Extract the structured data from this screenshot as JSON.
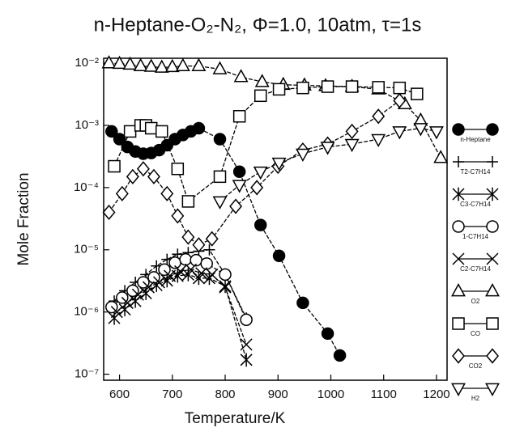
{
  "chart_data": {
    "type": "line",
    "title": "n-Heptane-O₂-N₂, Φ=1.0, 10atm, τ=1s",
    "x_label": "Temperature/K",
    "y_label": "Mole Fraction",
    "xlim": [
      570,
      1220
    ],
    "xticks": [
      600,
      700,
      800,
      900,
      1000,
      1100,
      1200
    ],
    "yscale": "log",
    "ylim": [
      8e-08,
      0.012
    ],
    "yticks": [
      {
        "value": 1e-07,
        "label": "10⁻⁷"
      },
      {
        "value": 1e-06,
        "label": "10⁻⁶"
      },
      {
        "value": 1e-05,
        "label": "10⁻⁵"
      },
      {
        "value": 0.0001,
        "label": "10⁻⁴"
      },
      {
        "value": 0.001,
        "label": "10⁻³"
      },
      {
        "value": 0.01,
        "label": "10⁻²"
      }
    ],
    "series": [
      {
        "name": "n-Heptane",
        "marker": "filled-circle",
        "color": "#000000",
        "x": [
          585,
          600,
          615,
          630,
          645,
          660,
          675,
          690,
          705,
          720,
          735,
          750,
          790,
          827,
          867,
          902,
          947,
          994,
          1017
        ],
        "values": [
          0.0008,
          0.0006,
          0.00045,
          0.00038,
          0.00035,
          0.00036,
          0.0004,
          0.00048,
          0.0006,
          0.0007,
          0.0008,
          0.0009,
          0.0006,
          0.00018,
          2.5e-05,
          8e-06,
          1.4e-06,
          4.5e-07,
          2e-07
        ]
      },
      {
        "name": "T2-C7H14",
        "marker": "plus",
        "color": "#000000",
        "x": [
          590,
          610,
          630,
          650,
          670,
          690,
          710,
          730,
          750,
          770,
          800,
          840
        ],
        "values": [
          1.5e-06,
          2.2e-06,
          3e-06,
          4e-06,
          5.5e-06,
          7e-06,
          8.5e-06,
          9e-06,
          9.5e-06,
          1e-05,
          4e-06,
          8e-07
        ]
      },
      {
        "name": "C3-C7H14",
        "marker": "asterisk",
        "color": "#000000",
        "x": [
          590,
          610,
          630,
          650,
          670,
          690,
          710,
          730,
          750,
          770,
          800,
          840
        ],
        "values": [
          8e-07,
          1.1e-06,
          1.5e-06,
          2e-06,
          2.7e-06,
          3.2e-06,
          3.8e-06,
          4e-06,
          3.5e-06,
          3.5e-06,
          2.6e-06,
          1.7e-07
        ]
      },
      {
        "name": "1-C7H14",
        "marker": "circle",
        "color": "#000000",
        "x": [
          585,
          605,
          625,
          645,
          665,
          685,
          705,
          725,
          745,
          765,
          800,
          840
        ],
        "values": [
          1.2e-06,
          1.7e-06,
          2.2e-06,
          3e-06,
          3.6e-06,
          4.8e-06,
          6.2e-06,
          7e-06,
          6.8e-06,
          6e-06,
          4e-06,
          7.5e-07
        ]
      },
      {
        "name": "C2-C7H14",
        "marker": "x",
        "color": "#000000",
        "x": [
          595,
          615,
          635,
          655,
          675,
          695,
          715,
          735,
          755,
          775,
          800,
          840
        ],
        "values": [
          1e-06,
          1.4e-06,
          1.9e-06,
          2.5e-06,
          3e-06,
          3.8e-06,
          4.5e-06,
          4.8e-06,
          4.2e-06,
          4e-06,
          2.5e-06,
          3e-07
        ]
      },
      {
        "name": "O2",
        "marker": "triangle",
        "color": "#000000",
        "x": [
          580,
          600,
          620,
          640,
          660,
          680,
          700,
          720,
          750,
          790,
          830,
          870,
          910,
          950,
          990,
          1040,
          1090,
          1140,
          1170,
          1208
        ],
        "values": [
          0.01,
          0.0098,
          0.0095,
          0.009,
          0.0088,
          0.0085,
          0.0087,
          0.009,
          0.009,
          0.008,
          0.006,
          0.005,
          0.0045,
          0.0044,
          0.0043,
          0.0042,
          0.0038,
          0.0022,
          0.0012,
          0.0003
        ]
      },
      {
        "name": "CO",
        "marker": "square",
        "color": "#000000",
        "x": [
          590,
          620,
          640,
          650,
          660,
          680,
          710,
          730,
          790,
          827,
          867,
          902,
          947,
          994,
          1040,
          1090,
          1130,
          1163
        ],
        "values": [
          0.00022,
          0.0008,
          0.001,
          0.001,
          0.0009,
          0.0008,
          0.0002,
          6e-05,
          0.00015,
          0.0014,
          0.003,
          0.0038,
          0.004,
          0.0042,
          0.0042,
          0.0041,
          0.004,
          0.0032
        ]
      },
      {
        "name": "CO2",
        "marker": "diamond",
        "color": "#000000",
        "x": [
          580,
          605,
          625,
          645,
          665,
          690,
          710,
          730,
          750,
          775,
          820,
          860,
          900,
          947,
          994,
          1040,
          1090,
          1130
        ],
        "values": [
          4e-05,
          8e-05,
          0.00015,
          0.0002,
          0.00015,
          8e-05,
          3.5e-05,
          1.6e-05,
          1.2e-05,
          1.5e-05,
          5e-05,
          0.0001,
          0.00022,
          0.0004,
          0.0005,
          0.0008,
          0.0014,
          0.0025
        ]
      },
      {
        "name": "H2",
        "marker": "triangle-down",
        "color": "#000000",
        "x": [
          790,
          827,
          867,
          902,
          947,
          994,
          1040,
          1090,
          1130,
          1170,
          1200
        ],
        "values": [
          6e-05,
          0.00011,
          0.00018,
          0.00025,
          0.00035,
          0.00045,
          0.0005,
          0.0006,
          0.0008,
          0.0009,
          0.0008
        ]
      }
    ]
  }
}
